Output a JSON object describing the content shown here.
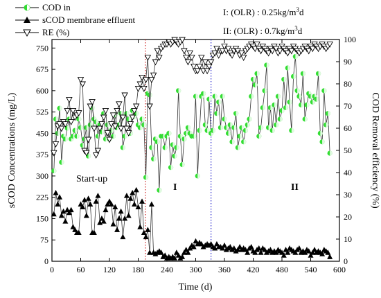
{
  "chart_data": {
    "type": "scatter",
    "title": "",
    "xlabel": "Time (d)",
    "ylabel": "sCOD Concentrations (mg/L)",
    "y2label": "COD Removal efficiency (%)",
    "xlim": [
      0,
      600
    ],
    "ylim": [
      0,
      780
    ],
    "y2lim": [
      0,
      100
    ],
    "xticks": [
      0,
      60,
      120,
      180,
      240,
      300,
      360,
      420,
      480,
      540,
      600
    ],
    "yticks": [
      0,
      75,
      150,
      225,
      300,
      375,
      450,
      525,
      600,
      675,
      750
    ],
    "y2ticks": [
      0,
      10,
      20,
      30,
      40,
      50,
      60,
      70,
      80,
      90,
      100
    ],
    "grid": false,
    "legend_position": "top-left",
    "annotations": {
      "olr_1": "I: (OLR) : 0.25kg/m",
      "olr_2": "II: (OLR) : 0.7kg/m",
      "unit_sup": "3",
      "unit_tail": "d",
      "startup": "Start-up",
      "phase_1": "I",
      "phase_2": "II"
    },
    "vertical_markers": [
      {
        "x": 195,
        "color": "#cc2222"
      },
      {
        "x": 332,
        "color": "#2222cc"
      }
    ],
    "series": [
      {
        "name": "COD in",
        "axis": "left",
        "marker": "half-circle",
        "color": "#33dd33",
        "x": [
          4,
          8,
          12,
          16,
          20,
          24,
          28,
          32,
          36,
          40,
          44,
          48,
          52,
          56,
          60,
          64,
          68,
          72,
          76,
          80,
          84,
          88,
          92,
          96,
          100,
          104,
          108,
          112,
          116,
          120,
          124,
          128,
          132,
          136,
          140,
          144,
          148,
          152,
          156,
          160,
          164,
          168,
          172,
          176,
          180,
          184,
          188,
          192,
          196,
          200,
          204,
          208,
          212,
          216,
          220,
          224,
          228,
          232,
          236,
          240,
          244,
          248,
          252,
          256,
          260,
          264,
          268,
          272,
          276,
          280,
          284,
          288,
          292,
          296,
          300,
          304,
          308,
          312,
          316,
          320,
          324,
          328,
          332,
          336,
          340,
          344,
          348,
          352,
          356,
          360,
          364,
          368,
          372,
          376,
          380,
          384,
          388,
          392,
          396,
          400,
          404,
          408,
          412,
          416,
          420,
          424,
          428,
          432,
          436,
          440,
          444,
          448,
          452,
          456,
          460,
          464,
          468,
          472,
          476,
          480,
          484,
          488,
          492,
          496,
          500,
          504,
          508,
          512,
          516,
          520,
          524,
          528,
          532,
          536,
          540,
          544,
          548,
          552,
          556,
          560,
          564,
          568,
          572,
          576,
          580
        ],
        "values": [
          318,
          500,
          450,
          538,
          348,
          440,
          430,
          468,
          500,
          430,
          440,
          460,
          440,
          500,
          470,
          408,
          430,
          470,
          370,
          480,
          540,
          500,
          490,
          440,
          480,
          455,
          520,
          430,
          480,
          430,
          460,
          440,
          515,
          470,
          480,
          520,
          400,
          440,
          520,
          500,
          450,
          530,
          510,
          520,
          480,
          470,
          500,
          480,
          295,
          590,
          585,
          400,
          360,
          430,
          420,
          250,
          440,
          440,
          400,
          440,
          450,
          330,
          410,
          370,
          400,
          600,
          440,
          340,
          430,
          450,
          470,
          450,
          440,
          440,
          580,
          300,
          460,
          580,
          590,
          480,
          460,
          570,
          450,
          460,
          580,
          520,
          560,
          470,
          580,
          500,
          470,
          450,
          480,
          420,
          470,
          520,
          400,
          440,
          470,
          420,
          460,
          480,
          500,
          580,
          640,
          620,
          660,
          440,
          470,
          540,
          600,
          690,
          470,
          540,
          460,
          550,
          480,
          580,
          500,
          530,
          640,
          540,
          680,
          560,
          460,
          650,
          720,
          600,
          580,
          550,
          660,
          500,
          550,
          590,
          580,
          560,
          580,
          570,
          660,
          450,
          420,
          600,
          480,
          520,
          380
        ]
      },
      {
        "name": "sCOD membrane effluent",
        "axis": "left",
        "marker": "triangle-up",
        "color": "#000000",
        "x": [
          4,
          8,
          12,
          16,
          20,
          24,
          28,
          32,
          36,
          40,
          44,
          48,
          52,
          56,
          60,
          64,
          68,
          72,
          76,
          80,
          84,
          88,
          92,
          96,
          100,
          104,
          108,
          112,
          116,
          120,
          124,
          128,
          132,
          136,
          140,
          144,
          148,
          152,
          156,
          160,
          164,
          168,
          172,
          176,
          180,
          184,
          188,
          192,
          196,
          200,
          204,
          208,
          212,
          216,
          220,
          224,
          228,
          232,
          236,
          240,
          244,
          248,
          252,
          256,
          260,
          264,
          268,
          272,
          276,
          280,
          284,
          288,
          292,
          296,
          300,
          304,
          308,
          312,
          316,
          320,
          324,
          328,
          332,
          336,
          340,
          344,
          348,
          352,
          356,
          360,
          364,
          368,
          372,
          376,
          380,
          384,
          388,
          392,
          396,
          400,
          404,
          408,
          412,
          416,
          420,
          424,
          428,
          432,
          436,
          440,
          444,
          448,
          452,
          456,
          460,
          464,
          468,
          472,
          476,
          480,
          484,
          488,
          492,
          496,
          500,
          504,
          508,
          512,
          516,
          520,
          524,
          528,
          532,
          536,
          540,
          544,
          548,
          552,
          556,
          560,
          564,
          568,
          572,
          576,
          580
        ],
        "values": [
          165,
          240,
          200,
          225,
          160,
          175,
          140,
          180,
          170,
          180,
          120,
          110,
          100,
          100,
          200,
          190,
          215,
          160,
          220,
          200,
          100,
          100,
          210,
          230,
          135,
          150,
          140,
          180,
          200,
          210,
          200,
          130,
          190,
          110,
          150,
          175,
          85,
          150,
          230,
          160,
          220,
          240,
          200,
          250,
          190,
          120,
          210,
          100,
          85,
          110,
          30,
          200,
          30,
          25,
          30,
          35,
          30,
          15,
          20,
          10,
          15,
          10,
          15,
          10,
          30,
          20,
          10,
          15,
          30,
          40,
          30,
          45,
          55,
          50,
          70,
          60,
          65,
          60,
          50,
          55,
          60,
          55,
          60,
          50,
          45,
          60,
          50,
          50,
          45,
          55,
          40,
          45,
          50,
          40,
          45,
          35,
          40,
          50,
          40,
          45,
          40,
          30,
          45,
          50,
          35,
          30,
          40,
          45,
          30,
          45,
          40,
          30,
          35,
          40,
          30,
          35,
          30,
          40,
          35,
          30,
          20,
          40,
          30,
          45,
          40,
          35,
          30,
          40,
          45,
          30,
          35,
          30,
          40,
          35,
          20,
          30,
          40,
          30,
          35,
          30,
          25,
          40,
          35,
          30,
          15
        ]
      },
      {
        "name": "RE (%)",
        "axis": "right",
        "marker": "triangle-down",
        "color": "#000000",
        "x": [
          4,
          8,
          12,
          16,
          20,
          24,
          28,
          32,
          36,
          40,
          44,
          48,
          52,
          56,
          60,
          64,
          68,
          72,
          76,
          80,
          84,
          88,
          92,
          96,
          100,
          104,
          108,
          112,
          116,
          120,
          124,
          128,
          132,
          136,
          140,
          144,
          148,
          152,
          156,
          160,
          164,
          168,
          172,
          176,
          180,
          184,
          188,
          192,
          196,
          200,
          204,
          208,
          212,
          216,
          220,
          224,
          228,
          232,
          236,
          240,
          244,
          248,
          252,
          256,
          260,
          264,
          268,
          272,
          276,
          280,
          284,
          288,
          292,
          296,
          300,
          304,
          308,
          312,
          316,
          320,
          324,
          328,
          332,
          336,
          340,
          344,
          348,
          352,
          356,
          360,
          364,
          368,
          372,
          376,
          380,
          384,
          388,
          392,
          396,
          400,
          404,
          408,
          412,
          416,
          420,
          424,
          428,
          432,
          436,
          440,
          444,
          448,
          452,
          456,
          460,
          464,
          468,
          472,
          476,
          480,
          484,
          488,
          492,
          496,
          500,
          504,
          508,
          512,
          516,
          520,
          524,
          528,
          532,
          536,
          540,
          544,
          548,
          552,
          556,
          560,
          564,
          568,
          572,
          576,
          580
        ],
        "values": [
          49,
          53,
          61,
          62,
          60,
          63,
          62,
          68,
          73,
          63,
          68,
          65,
          66,
          67,
          82,
          80,
          50,
          49,
          55,
          70,
          72,
          60,
          48,
          50,
          60,
          62,
          65,
          68,
          58,
          55,
          62,
          66,
          61,
          68,
          71,
          60,
          65,
          75,
          60,
          58,
          62,
          65,
          68,
          70,
          78,
          80,
          83,
          78,
          82,
          92,
          70,
          82,
          84,
          90,
          95,
          92,
          96,
          97,
          98,
          98,
          99,
          98,
          99,
          100,
          99,
          98,
          99,
          100,
          95,
          92,
          90,
          94,
          92,
          88,
          86,
          86,
          88,
          92,
          86,
          90,
          86,
          88,
          90,
          93,
          94,
          96,
          93,
          95,
          95,
          97,
          95,
          96,
          94,
          93,
          95,
          96,
          95,
          93,
          94,
          92,
          95,
          96,
          97,
          98,
          97,
          96,
          98,
          96,
          95,
          97,
          96,
          95,
          94,
          96,
          95,
          97,
          96,
          94,
          95,
          97,
          96,
          95,
          94,
          96,
          95,
          97,
          96,
          95,
          94,
          95,
          96,
          97,
          96,
          95,
          97,
          96,
          98,
          97,
          96,
          97,
          98,
          97,
          96,
          97,
          98
        ]
      }
    ]
  }
}
